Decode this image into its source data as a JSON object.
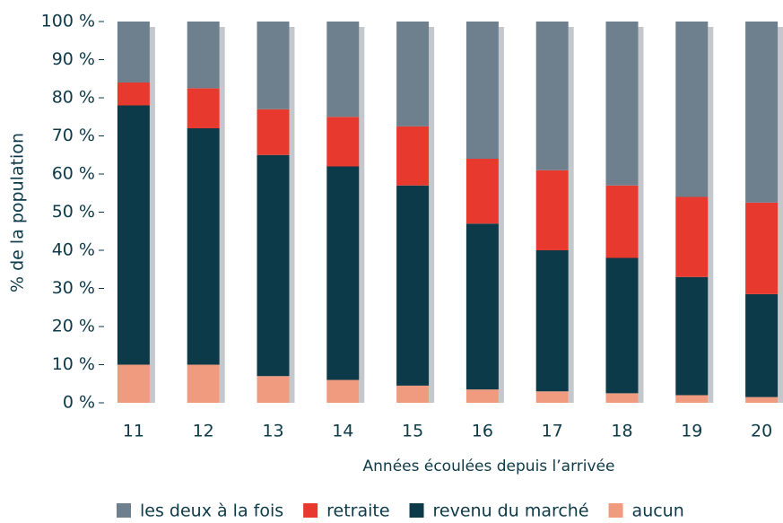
{
  "chart_data": {
    "type": "stacked_bar",
    "x_label": "Années écoulées depuis l’arrivée",
    "y_label": "% de la population",
    "categories": [
      "11",
      "12",
      "13",
      "14",
      "15",
      "16",
      "17",
      "18",
      "19",
      "20"
    ],
    "series": [
      {
        "name": "les deux à la fois",
        "color": "#6e7f8d",
        "values": [
          16,
          17.5,
          23,
          25,
          27.5,
          36,
          39,
          43,
          46,
          47.5
        ]
      },
      {
        "name": "retraite",
        "color": "#e8392f",
        "values": [
          6,
          10.5,
          12,
          13,
          15.5,
          17,
          21,
          19,
          21,
          24
        ]
      },
      {
        "name": "revenu du marché",
        "color": "#0d3a48",
        "values": [
          68,
          62,
          58,
          56,
          52.5,
          43.5,
          37,
          35.5,
          31,
          27
        ]
      },
      {
        "name": "aucun",
        "color": "#f09a80",
        "values": [
          10,
          10,
          7,
          6,
          4.5,
          3.5,
          3,
          2.5,
          2,
          1.5
        ]
      }
    ],
    "ylim": [
      0,
      100
    ],
    "yticks": [
      {
        "value": 0,
        "label": "0 %"
      },
      {
        "value": 10,
        "label": "10 %"
      },
      {
        "value": 20,
        "label": "20 %"
      },
      {
        "value": 30,
        "label": "30 %"
      },
      {
        "value": 40,
        "label": "40 %"
      },
      {
        "value": 50,
        "label": "50 %"
      },
      {
        "value": 60,
        "label": "60 %"
      },
      {
        "value": 70,
        "label": "70 %"
      },
      {
        "value": 80,
        "label": "80 %"
      },
      {
        "value": 90,
        "label": "90 %"
      },
      {
        "value": 100,
        "label": "100 %"
      }
    ],
    "legend": "bottom"
  }
}
